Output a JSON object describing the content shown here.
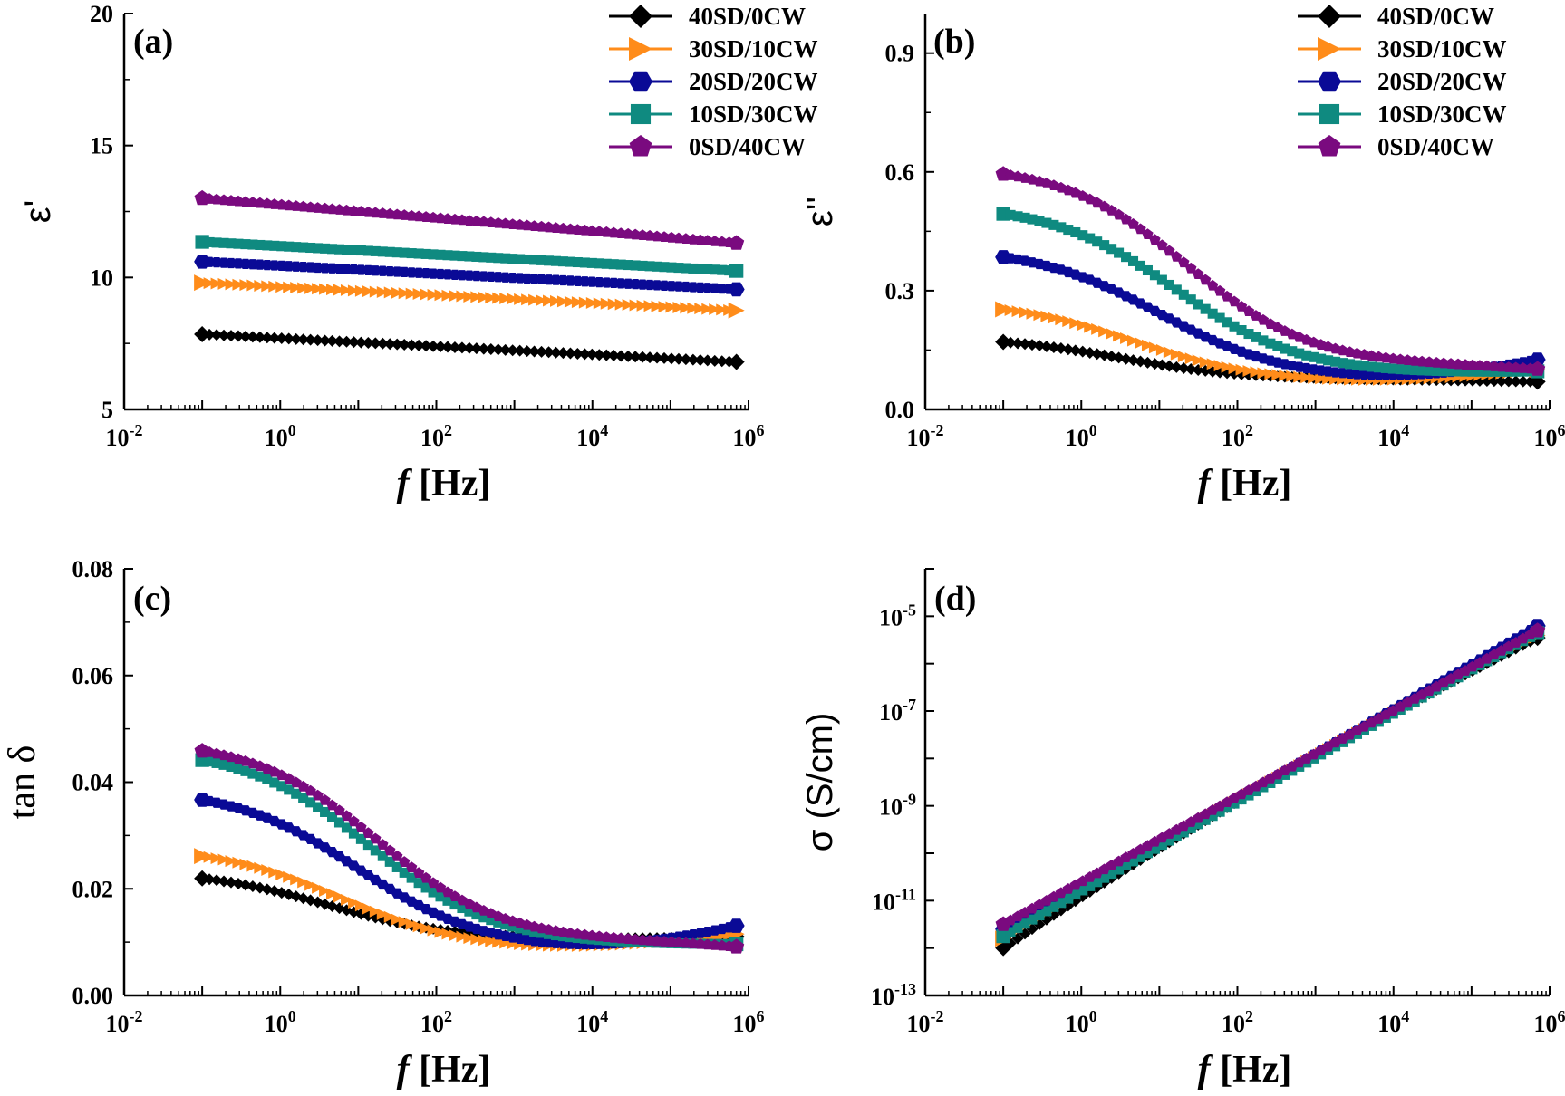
{
  "legend": [
    "40SD/0CW",
    "30SD/10CW",
    "20SD/20CW",
    "10SD/30CW",
    "0SD/40CW"
  ],
  "series_colors": [
    "#000000",
    "#ff8c1a",
    "#0a0a96",
    "#0f8a80",
    "#7a0a7f"
  ],
  "series_markers": [
    "diamond",
    "triangle-right",
    "hexagon",
    "square",
    "pentagon"
  ],
  "chart_data": [
    {
      "panel": "(a)",
      "type": "scatter",
      "xlabel_italic": "f",
      "xlabel_unit": "[Hz]",
      "ylabel": "ε'",
      "x_scale": "log",
      "xlim": [
        0.01,
        1000000
      ],
      "x_ticks": [
        {
          "base": "10",
          "exp": "-2"
        },
        {
          "base": "10",
          "exp": "0"
        },
        {
          "base": "10",
          "exp": "2"
        },
        {
          "base": "10",
          "exp": "4"
        },
        {
          "base": "10",
          "exp": "6"
        }
      ],
      "y_scale": "linear",
      "ylim": [
        5,
        20
      ],
      "y_ticks": [
        "5",
        "10",
        "15",
        "20"
      ],
      "legend_position": "top-right",
      "series": [
        {
          "name": "40SD/0CW",
          "x_range": [
            0.1,
            700000
          ],
          "shape": "linear",
          "start": 7.85,
          "end": 6.8
        },
        {
          "name": "30SD/10CW",
          "x_range": [
            0.1,
            700000
          ],
          "shape": "linear",
          "start": 9.8,
          "end": 8.75
        },
        {
          "name": "20SD/20CW",
          "x_range": [
            0.1,
            700000
          ],
          "shape": "linear",
          "start": 10.6,
          "end": 9.55
        },
        {
          "name": "10SD/30CW",
          "x_range": [
            0.1,
            700000
          ],
          "shape": "linear",
          "start": 11.35,
          "end": 10.25
        },
        {
          "name": "0SD/40CW",
          "x_range": [
            0.1,
            700000
          ],
          "shape": "linear",
          "start": 13.0,
          "end": 11.3
        }
      ]
    },
    {
      "panel": "(b)",
      "type": "scatter",
      "xlabel_italic": "f",
      "xlabel_unit": "[Hz]",
      "ylabel": "ε''",
      "x_scale": "log",
      "xlim": [
        0.01,
        1000000
      ],
      "x_ticks": [
        {
          "base": "10",
          "exp": "-2"
        },
        {
          "base": "10",
          "exp": "0"
        },
        {
          "base": "10",
          "exp": "2"
        },
        {
          "base": "10",
          "exp": "4"
        },
        {
          "base": "10",
          "exp": "6"
        }
      ],
      "y_scale": "linear",
      "ylim": [
        0.0,
        1.0
      ],
      "y_ticks": [
        "0.0",
        "0.3",
        "0.6",
        "0.9"
      ],
      "legend_position": "top-right",
      "series": [
        {
          "name": "40SD/0CW",
          "x_range": [
            0.1,
            700000
          ],
          "shape": "relax",
          "plateau": 0.185,
          "floor": 0.075,
          "fc_log": 0.5,
          "tail_end": 0.07,
          "dip_log": 2.8,
          "dip_depth": 0.0
        },
        {
          "name": "30SD/10CW",
          "x_range": [
            0.1,
            700000
          ],
          "shape": "relax",
          "plateau": 0.275,
          "floor": 0.068,
          "fc_log": 0.7,
          "tail_end": 0.1,
          "dip_log": 3.0,
          "dip_depth": 0.0
        },
        {
          "name": "20SD/20CW",
          "x_range": [
            0.1,
            700000
          ],
          "shape": "relax",
          "plateau": 0.41,
          "floor": 0.075,
          "fc_log": 1.0,
          "tail_end": 0.125,
          "dip_log": 3.2,
          "dip_depth": 0.0
        },
        {
          "name": "10SD/30CW",
          "x_range": [
            0.1,
            700000
          ],
          "shape": "relax",
          "plateau": 0.52,
          "floor": 0.09,
          "fc_log": 1.2,
          "tail_end": 0.095,
          "dip_log": 3.6,
          "dip_depth": 0.0
        },
        {
          "name": "0SD/40CW",
          "x_range": [
            0.1,
            700000
          ],
          "shape": "relax",
          "plateau": 0.62,
          "floor": 0.11,
          "fc_log": 1.35,
          "tail_end": 0.1,
          "dip_log": 3.8,
          "dip_depth": 0.0
        }
      ]
    },
    {
      "panel": "(c)",
      "type": "scatter",
      "xlabel_italic": "f",
      "xlabel_unit": "[Hz]",
      "ylabel": "tan δ",
      "x_scale": "log",
      "xlim": [
        0.01,
        1000000
      ],
      "x_ticks": [
        {
          "base": "10",
          "exp": "-2"
        },
        {
          "base": "10",
          "exp": "0"
        },
        {
          "base": "10",
          "exp": "2"
        },
        {
          "base": "10",
          "exp": "4"
        },
        {
          "base": "10",
          "exp": "6"
        }
      ],
      "y_scale": "linear",
      "ylim": [
        0.0,
        0.08
      ],
      "y_ticks": [
        "0.00",
        "0.02",
        "0.04",
        "0.06",
        "0.08"
      ],
      "series": [
        {
          "name": "40SD/0CW",
          "x_range": [
            0.1,
            700000
          ],
          "shape": "relax",
          "plateau": 0.0235,
          "floor": 0.0105,
          "fc_log": 0.6,
          "tail_end": 0.011,
          "dip_log": 3.0,
          "dip_depth": 0.0
        },
        {
          "name": "30SD/10CW",
          "x_range": [
            0.1,
            700000
          ],
          "shape": "relax",
          "plateau": 0.028,
          "floor": 0.0085,
          "fc_log": 0.8,
          "tail_end": 0.0115,
          "dip_log": 2.8,
          "dip_depth": 0.0
        },
        {
          "name": "20SD/20CW",
          "x_range": [
            0.1,
            700000
          ],
          "shape": "relax",
          "plateau": 0.039,
          "floor": 0.0085,
          "fc_log": 1.0,
          "tail_end": 0.013,
          "dip_log": 3.2,
          "dip_depth": 0.0
        },
        {
          "name": "10SD/30CW",
          "x_range": [
            0.1,
            700000
          ],
          "shape": "relax",
          "plateau": 0.0465,
          "floor": 0.0095,
          "fc_log": 1.15,
          "tail_end": 0.0095,
          "dip_log": 3.5,
          "dip_depth": 0.0
        },
        {
          "name": "0SD/40CW",
          "x_range": [
            0.1,
            700000
          ],
          "shape": "relax",
          "plateau": 0.048,
          "floor": 0.01,
          "fc_log": 1.25,
          "tail_end": 0.009,
          "dip_log": 3.8,
          "dip_depth": 0.0
        }
      ]
    },
    {
      "panel": "(d)",
      "type": "scatter",
      "xlabel_italic": "f",
      "xlabel_unit": "[Hz]",
      "ylabel": "σ (S/cm)",
      "x_scale": "log",
      "xlim": [
        0.01,
        1000000
      ],
      "x_ticks": [
        {
          "base": "10",
          "exp": "-2"
        },
        {
          "base": "10",
          "exp": "0"
        },
        {
          "base": "10",
          "exp": "2"
        },
        {
          "base": "10",
          "exp": "4"
        },
        {
          "base": "10",
          "exp": "6"
        }
      ],
      "y_scale": "log",
      "ylim": [
        1e-13,
        0.0001
      ],
      "y_ticks": [
        {
          "base": "10",
          "exp": "-13"
        },
        {
          "base": "10",
          "exp": "-11"
        },
        {
          "base": "10",
          "exp": "-9"
        },
        {
          "base": "10",
          "exp": "-7"
        },
        {
          "base": "10",
          "exp": "-5"
        }
      ],
      "series": [
        {
          "name": "40SD/0CW",
          "x_range": [
            0.1,
            700000
          ],
          "shape": "logpoly",
          "points": [
            [
              -1,
              -12.0
            ],
            [
              3,
              -7.95
            ],
            [
              5.85,
              -5.45
            ]
          ]
        },
        {
          "name": "30SD/10CW",
          "x_range": [
            0.1,
            700000
          ],
          "shape": "logpoly",
          "points": [
            [
              -1,
              -11.8
            ],
            [
              3,
              -7.95
            ],
            [
              5.85,
              -5.4
            ]
          ]
        },
        {
          "name": "20SD/20CW",
          "x_range": [
            0.1,
            700000
          ],
          "shape": "logpoly",
          "points": [
            [
              -1,
              -11.6
            ],
            [
              3,
              -7.9
            ],
            [
              5.85,
              -5.2
            ]
          ]
        },
        {
          "name": "10SD/30CW",
          "x_range": [
            0.1,
            700000
          ],
          "shape": "logpoly",
          "points": [
            [
              -1,
              -11.75
            ],
            [
              3,
              -7.98
            ],
            [
              5.85,
              -5.35
            ]
          ]
        },
        {
          "name": "0SD/40CW",
          "x_range": [
            0.1,
            700000
          ],
          "shape": "logpoly",
          "points": [
            [
              -1,
              -11.5
            ],
            [
              3,
              -7.9
            ],
            [
              5.85,
              -5.3
            ]
          ]
        }
      ]
    }
  ]
}
